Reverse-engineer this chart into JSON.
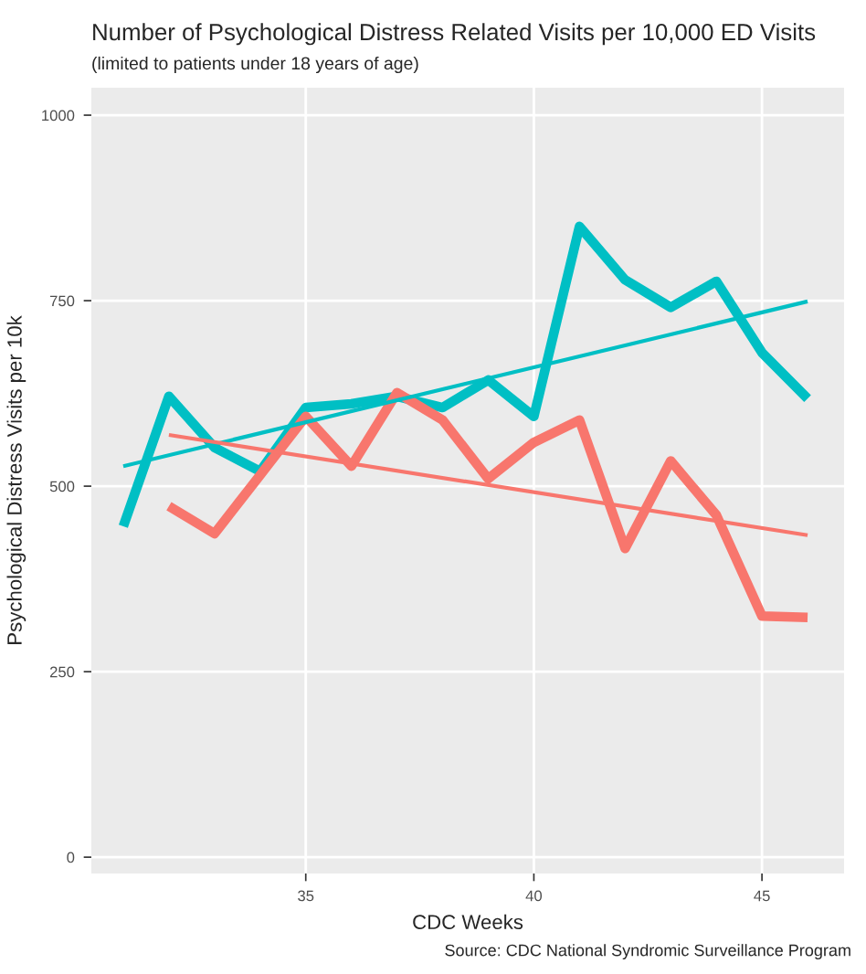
{
  "chart_data": {
    "type": "line",
    "title": "Number of Psychological Distress Related Visits per 10,000 ED Visits",
    "subtitle": "(limited to patients under 18 years of age)",
    "xlabel": "CDC Weeks",
    "ylabel": "Psychological Distress Visits per 10k",
    "series": [
      {
        "color": "#00bfc4",
        "x": [
          31,
          32,
          33,
          34,
          35,
          36,
          37,
          38,
          39,
          40,
          41,
          42,
          43,
          44,
          45,
          46
        ],
        "values": [
          446,
          621,
          552,
          520,
          606,
          611,
          621,
          606,
          643,
          594,
          850,
          778,
          741,
          776,
          680,
          618
        ]
      },
      {
        "color": "#f8766d",
        "x": [
          32,
          33,
          34,
          35,
          36,
          37,
          38,
          39,
          40,
          41,
          42,
          43,
          44,
          45,
          46
        ],
        "values": [
          473,
          436,
          515,
          594,
          527,
          626,
          589,
          510,
          559,
          589,
          416,
          534,
          461,
          325,
          323
        ]
      },
      {
        "color": "#00bfc4",
        "x": [
          31,
          46
        ],
        "values": [
          527,
          749
        ]
      },
      {
        "color": "#f8766d",
        "x": [
          32,
          46
        ],
        "values": [
          569,
          434
        ]
      }
    ],
    "xlim": [
      30.3,
      46.8
    ],
    "ylim": [
      -22,
      1037
    ],
    "xticks": [
      35,
      40,
      45
    ],
    "yticks": [
      0,
      250,
      500,
      750,
      1000
    ],
    "grid": true,
    "legend": false,
    "annotations": [
      "Source: CDC National Syndromic Surveillance Program"
    ]
  }
}
